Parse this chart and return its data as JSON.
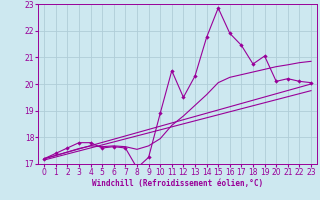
{
  "title": "",
  "xlabel": "Windchill (Refroidissement éolien,°C)",
  "bg_color": "#cde8f0",
  "line_color": "#990099",
  "grid_color": "#b0cdd8",
  "xlim": [
    -0.5,
    23.5
  ],
  "ylim": [
    17,
    23
  ],
  "yticks": [
    17,
    18,
    19,
    20,
    21,
    22,
    23
  ],
  "xticks": [
    0,
    1,
    2,
    3,
    4,
    5,
    6,
    7,
    8,
    9,
    10,
    11,
    12,
    13,
    14,
    15,
    16,
    17,
    18,
    19,
    20,
    21,
    22,
    23
  ],
  "data_x": [
    0,
    1,
    2,
    3,
    4,
    5,
    6,
    7,
    8,
    9,
    10,
    11,
    12,
    13,
    14,
    15,
    16,
    17,
    18,
    19,
    20,
    21,
    22,
    23
  ],
  "data_y": [
    17.2,
    17.4,
    17.6,
    17.8,
    17.8,
    17.6,
    17.65,
    17.6,
    16.85,
    17.25,
    18.9,
    20.5,
    19.5,
    20.3,
    21.75,
    22.85,
    21.9,
    21.45,
    20.75,
    21.05,
    20.1,
    20.2,
    20.1,
    20.05
  ],
  "trend1_x": [
    0,
    23
  ],
  "trend1_y": [
    17.2,
    20.0
  ],
  "trend2_x": [
    0,
    23
  ],
  "trend2_y": [
    17.15,
    19.75
  ],
  "smooth_x": [
    0,
    1,
    2,
    3,
    4,
    5,
    6,
    7,
    8,
    9,
    10,
    11,
    12,
    13,
    14,
    15,
    16,
    17,
    18,
    19,
    20,
    21,
    22,
    23
  ],
  "smooth_y": [
    17.2,
    17.32,
    17.45,
    17.58,
    17.68,
    17.65,
    17.68,
    17.65,
    17.55,
    17.68,
    17.95,
    18.45,
    18.8,
    19.2,
    19.6,
    20.05,
    20.25,
    20.35,
    20.45,
    20.55,
    20.65,
    20.72,
    20.8,
    20.85
  ]
}
